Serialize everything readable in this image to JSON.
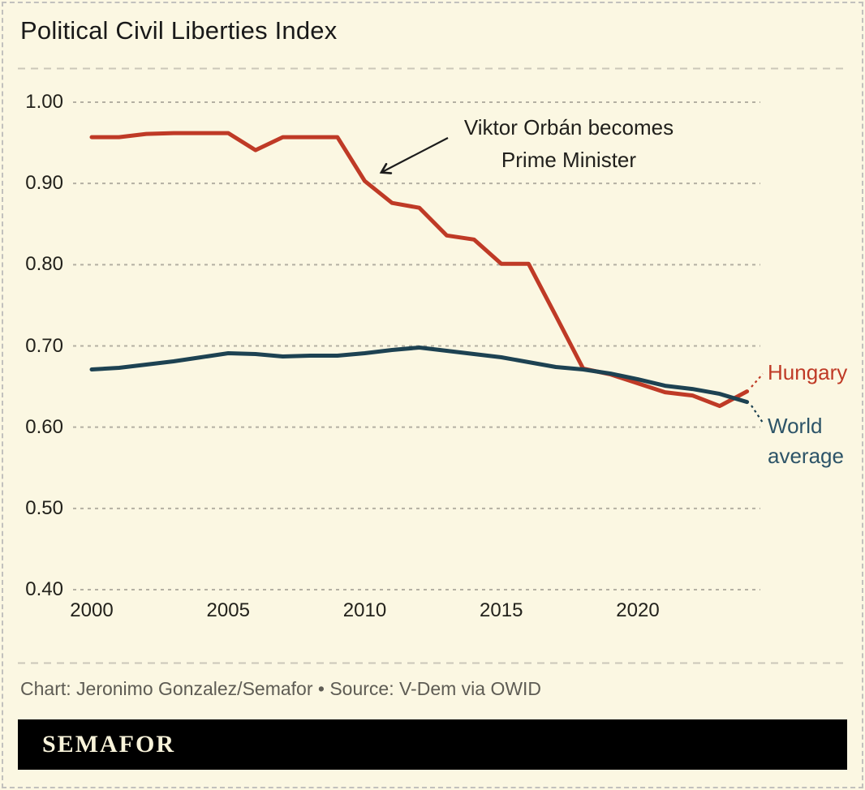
{
  "title": "Political Civil Liberties Index",
  "credit": "Chart: Jeronimo Gonzalez/Semafor • Source: V-Dem via OWID",
  "logo": "SEMAFOR",
  "colors": {
    "background": "#fbf7e2",
    "hungary": "#bf3a26",
    "world": "#1d4252",
    "world_label": "#2d5468",
    "grid": "#b4b0a3",
    "divider": "#cbc7b9",
    "text": "#22211b",
    "annotation_text": "#201f1b",
    "credit_text": "#5e5c54",
    "logo_bar": "#000000",
    "logo_text": "#f8f3da"
  },
  "chart_data": {
    "type": "line",
    "title": "Political Civil Liberties Index",
    "xlabel": "",
    "ylabel": "",
    "xlim": [
      2000,
      2024
    ],
    "ylim": [
      0.4,
      1.0
    ],
    "grid": "horizontal-dashed",
    "legend": "line-end-labels",
    "x": [
      2000,
      2001,
      2002,
      2003,
      2004,
      2005,
      2006,
      2007,
      2008,
      2009,
      2010,
      2011,
      2012,
      2013,
      2014,
      2015,
      2016,
      2017,
      2018,
      2019,
      2020,
      2021,
      2022,
      2023,
      2024
    ],
    "series": [
      {
        "name": "Hungary",
        "color": "#bf3a26",
        "values": [
          0.957,
          0.957,
          0.961,
          0.962,
          0.962,
          0.962,
          0.941,
          0.957,
          0.957,
          0.957,
          0.903,
          0.876,
          0.87,
          0.836,
          0.831,
          0.801,
          0.801,
          0.737,
          0.672,
          0.665,
          0.654,
          0.643,
          0.639,
          0.626,
          0.644
        ]
      },
      {
        "name": "World average",
        "color": "#1d4252",
        "values": [
          0.671,
          0.673,
          0.677,
          0.681,
          0.686,
          0.691,
          0.69,
          0.687,
          0.688,
          0.688,
          0.691,
          0.695,
          0.698,
          0.694,
          0.69,
          0.686,
          0.68,
          0.674,
          0.671,
          0.666,
          0.659,
          0.651,
          0.647,
          0.641,
          0.631
        ]
      }
    ],
    "x_ticks": [
      2000,
      2005,
      2010,
      2015,
      2020
    ],
    "y_ticks": [
      {
        "v": 1.0,
        "label": "1.00"
      },
      {
        "v": 0.9,
        "label": "0.90"
      },
      {
        "v": 0.8,
        "label": "0.80"
      },
      {
        "v": 0.7,
        "label": "0.70"
      },
      {
        "v": 0.6,
        "label": "0.60"
      },
      {
        "v": 0.5,
        "label": "0.50"
      },
      {
        "v": 0.4,
        "label": "0.40"
      }
    ],
    "annotation": {
      "line1": "Viktor Orbán becomes",
      "line2": "Prime Minister",
      "arrow_points_to": {
        "series": "Hungary",
        "year": 2010,
        "value": 0.903
      }
    },
    "end_labels": {
      "hungary": "Hungary",
      "world_line1": "World",
      "world_line2": "average"
    }
  }
}
